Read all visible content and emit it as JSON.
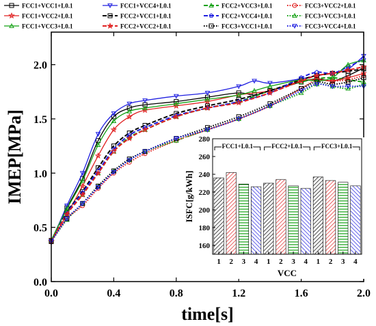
{
  "chart_data": [
    {
      "type": "line",
      "xlabel": "time[s]",
      "ylabel": "IMEP[MPa]",
      "xlim": [
        0,
        2.0
      ],
      "ylim": [
        0,
        2.3
      ],
      "xticks": [
        "0.0",
        "0.4",
        "0.8",
        "1.2",
        "1.6",
        "2.0"
      ],
      "yticks": [
        "0.0",
        "0.5",
        "1.0",
        "1.5",
        "2.0"
      ],
      "legend_position": "top",
      "series": [
        {
          "name": "FCC1+VCC1+L0.1",
          "color": "#000000",
          "dash": "solid",
          "marker": "square",
          "x": [
            0,
            0.1,
            0.2,
            0.3,
            0.4,
            0.5,
            0.6,
            0.8,
            1.0,
            1.2,
            1.3,
            1.4,
            1.6,
            1.7,
            1.8,
            1.9,
            2.0
          ],
          "y": [
            0.38,
            0.68,
            0.95,
            1.3,
            1.52,
            1.6,
            1.63,
            1.66,
            1.7,
            1.74,
            1.72,
            1.76,
            1.84,
            1.87,
            1.85,
            1.9,
            1.97
          ]
        },
        {
          "name": "FCC1+VCC4+L0.1",
          "color": "#1f1fe0",
          "dash": "solid",
          "marker": "triangle-down",
          "x": [
            0,
            0.1,
            0.2,
            0.3,
            0.4,
            0.5,
            0.6,
            0.8,
            1.0,
            1.2,
            1.3,
            1.4,
            1.6,
            1.7,
            1.8,
            1.9,
            2.0
          ],
          "y": [
            0.36,
            0.7,
            1.0,
            1.36,
            1.55,
            1.64,
            1.67,
            1.71,
            1.74,
            1.8,
            1.85,
            1.83,
            1.87,
            1.9,
            1.92,
            1.96,
            2.08
          ]
        },
        {
          "name": "FCC2+VCC3+L0.1",
          "color": "#12a012",
          "dash": "dashed",
          "marker": "triangle",
          "x": [
            0,
            0.1,
            0.2,
            0.3,
            0.4,
            0.5,
            0.6,
            0.8,
            1.0,
            1.2,
            1.4,
            1.6,
            1.7,
            1.8,
            1.9,
            2.0
          ],
          "y": [
            0.37,
            0.62,
            0.8,
            1.0,
            1.2,
            1.33,
            1.4,
            1.52,
            1.6,
            1.66,
            1.76,
            1.84,
            1.87,
            1.88,
            1.86,
            1.84
          ]
        },
        {
          "name": "FCC3+VCC2+L0.1",
          "color": "#e02020",
          "dash": "dotted",
          "marker": "circle",
          "x": [
            0,
            0.1,
            0.2,
            0.3,
            0.4,
            0.5,
            0.6,
            0.8,
            1.0,
            1.2,
            1.4,
            1.6,
            1.7,
            1.8,
            1.9,
            2.0
          ],
          "y": [
            0.38,
            0.58,
            0.7,
            0.86,
            1.0,
            1.1,
            1.18,
            1.3,
            1.4,
            1.5,
            1.62,
            1.78,
            1.86,
            1.85,
            1.86,
            1.9
          ]
        },
        {
          "name": "FCC1+VCC2+L0.1",
          "color": "#e02020",
          "dash": "solid",
          "marker": "star",
          "x": [
            0,
            0.1,
            0.2,
            0.3,
            0.4,
            0.5,
            0.6,
            0.8,
            1.0,
            1.2,
            1.4,
            1.6,
            1.7,
            1.8,
            1.9,
            2.0
          ],
          "y": [
            0.37,
            0.62,
            0.88,
            1.16,
            1.4,
            1.52,
            1.58,
            1.62,
            1.66,
            1.72,
            1.76,
            1.85,
            1.86,
            1.85,
            1.88,
            1.92
          ]
        },
        {
          "name": "FCC2+VCC1+L0.1",
          "color": "#000000",
          "dash": "dashed",
          "marker": "square",
          "x": [
            0,
            0.1,
            0.2,
            0.3,
            0.4,
            0.5,
            0.6,
            0.8,
            1.0,
            1.2,
            1.4,
            1.6,
            1.7,
            1.8,
            1.9,
            2.0
          ],
          "y": [
            0.37,
            0.64,
            0.83,
            1.05,
            1.25,
            1.37,
            1.44,
            1.55,
            1.62,
            1.68,
            1.76,
            1.86,
            1.9,
            1.92,
            1.94,
            1.96
          ]
        },
        {
          "name": "FCC2+VCC4+L0.1",
          "color": "#1f1fe0",
          "dash": "dashed",
          "marker": "pentagon",
          "x": [
            0,
            0.1,
            0.2,
            0.3,
            0.4,
            0.5,
            0.6,
            0.8,
            1.0,
            1.2,
            1.4,
            1.6,
            1.7,
            1.8,
            1.9,
            2.0
          ],
          "y": [
            0.37,
            0.63,
            0.82,
            1.02,
            1.22,
            1.35,
            1.42,
            1.53,
            1.6,
            1.66,
            1.74,
            1.88,
            1.93,
            1.92,
            1.98,
            2.05
          ]
        },
        {
          "name": "FCC3+VCC3+L0.1",
          "color": "#12a012",
          "dash": "dotted",
          "marker": "triangle",
          "x": [
            0,
            0.1,
            0.2,
            0.3,
            0.4,
            0.5,
            0.6,
            0.8,
            1.0,
            1.2,
            1.4,
            1.6,
            1.7,
            1.8,
            1.9,
            2.0
          ],
          "y": [
            0.37,
            0.57,
            0.72,
            0.88,
            1.02,
            1.12,
            1.2,
            1.3,
            1.4,
            1.5,
            1.62,
            1.74,
            1.82,
            1.8,
            1.78,
            1.82
          ]
        },
        {
          "name": "FCC1+VCC3+L0.1",
          "color": "#12a012",
          "dash": "solid",
          "marker": "triangle",
          "x": [
            0,
            0.1,
            0.2,
            0.3,
            0.4,
            0.5,
            0.6,
            0.8,
            1.0,
            1.2,
            1.3,
            1.4,
            1.6,
            1.7,
            1.8,
            1.9,
            2.0
          ],
          "y": [
            0.38,
            0.67,
            0.93,
            1.26,
            1.48,
            1.57,
            1.6,
            1.64,
            1.68,
            1.72,
            1.76,
            1.8,
            1.86,
            1.85,
            1.88,
            2.0,
            2.04
          ]
        },
        {
          "name": "FCC2+VCC2+L0.1",
          "color": "#e02020",
          "dash": "dashed",
          "marker": "star",
          "x": [
            0,
            0.1,
            0.2,
            0.3,
            0.4,
            0.5,
            0.6,
            0.8,
            1.0,
            1.2,
            1.4,
            1.6,
            1.7,
            1.8,
            1.9,
            2.0
          ],
          "y": [
            0.37,
            0.62,
            0.8,
            1.0,
            1.2,
            1.32,
            1.4,
            1.52,
            1.6,
            1.65,
            1.74,
            1.85,
            1.9,
            1.92,
            1.95,
            1.98
          ]
        },
        {
          "name": "FCC3+VCC1+L0.1",
          "color": "#000000",
          "dash": "dotted",
          "marker": "square",
          "x": [
            0,
            0.1,
            0.2,
            0.3,
            0.4,
            0.5,
            0.6,
            0.8,
            1.0,
            1.2,
            1.4,
            1.6,
            1.7,
            1.8,
            1.9,
            2.0
          ],
          "y": [
            0.37,
            0.58,
            0.72,
            0.88,
            1.02,
            1.13,
            1.2,
            1.32,
            1.42,
            1.52,
            1.64,
            1.78,
            1.84,
            1.82,
            1.84,
            1.88
          ]
        },
        {
          "name": "FCC3+VCC4+L0.1",
          "color": "#1f1fe0",
          "dash": "dotted",
          "marker": "triangle-down",
          "x": [
            0,
            0.1,
            0.2,
            0.3,
            0.4,
            0.5,
            0.6,
            0.8,
            1.0,
            1.2,
            1.4,
            1.6,
            1.7,
            1.8,
            1.9,
            2.0
          ],
          "y": [
            0.37,
            0.58,
            0.72,
            0.87,
            1.01,
            1.12,
            1.2,
            1.32,
            1.4,
            1.5,
            1.62,
            1.76,
            1.82,
            1.8,
            1.8,
            1.8
          ]
        }
      ]
    },
    {
      "type": "bar",
      "xlabel": "VCC",
      "ylabel": "ISFC[g/kWh]",
      "ylim": [
        150,
        280
      ],
      "yticks": [
        "160",
        "180",
        "200",
        "220",
        "240",
        "260",
        "280"
      ],
      "categories": [
        "1",
        "2",
        "3",
        "4",
        "1",
        "2",
        "3",
        "4",
        "1",
        "2",
        "3",
        "4"
      ],
      "groups": [
        {
          "name": "FCC1+L0.1",
          "values": [
            236,
            242,
            229,
            226
          ]
        },
        {
          "name": "FCC2+L0.1",
          "values": [
            230,
            234,
            227,
            224
          ]
        },
        {
          "name": "FCC3+L0.1",
          "values": [
            237,
            233,
            231,
            227
          ]
        }
      ],
      "bar_colors": [
        "#000000",
        "#e02020",
        "#12a012",
        "#1f1fe0"
      ]
    }
  ]
}
